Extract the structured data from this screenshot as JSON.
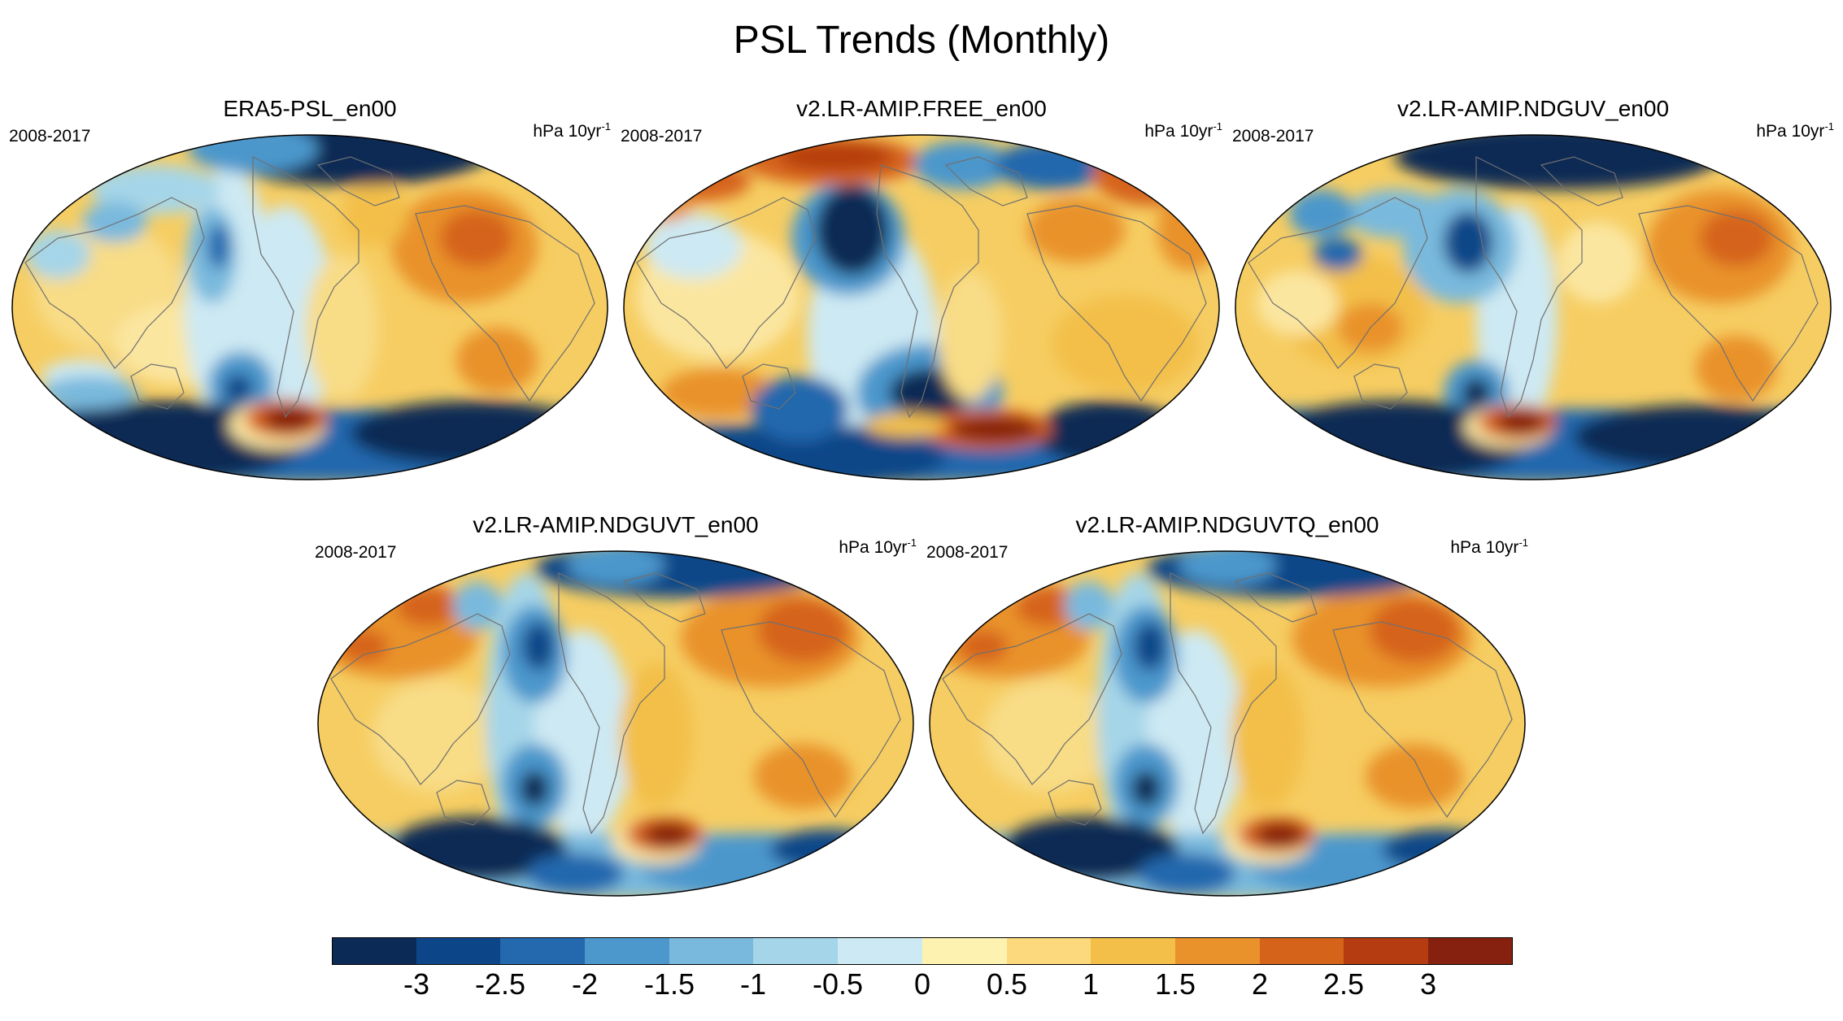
{
  "figure": {
    "title": "PSL Trends (Monthly)"
  },
  "panels": [
    {
      "title": "ERA5-PSL_en00",
      "period": "2008-2017",
      "units": "hPa 10yr",
      "units_exp": "-1"
    },
    {
      "title": "v2.LR-AMIP.FREE_en00",
      "period": "2008-2017",
      "units": "hPa 10yr",
      "units_exp": "-1"
    },
    {
      "title": "v2.LR-AMIP.NDGUV_en00",
      "period": "2008-2017",
      "units": "hPa 10yr",
      "units_exp": "-1"
    },
    {
      "title": "v2.LR-AMIP.NDGUVT_en00",
      "period": "2008-2017",
      "units": "hPa 10yr",
      "units_exp": "-1"
    },
    {
      "title": "v2.LR-AMIP.NDGUVTQ_en00",
      "period": "2008-2017",
      "units": "hPa 10yr",
      "units_exp": "-1"
    }
  ],
  "colorbar": {
    "labels": [
      "-3",
      "-2.5",
      "-2",
      "-1.5",
      "-1",
      "-0.5",
      "0",
      "0.5",
      "1",
      "1.5",
      "2",
      "2.5",
      "3"
    ],
    "colors": [
      "#0b2a55",
      "#0d4688",
      "#2468ad",
      "#4c97cc",
      "#79b9dd",
      "#a5d5e8",
      "#cde9f3",
      "#fdf2b0",
      "#fbd97c",
      "#f3bf49",
      "#e9922b",
      "#d6631a",
      "#b53c10",
      "#86210f"
    ]
  },
  "colors": {
    "coastline": "#707070",
    "map_border": "#000000"
  }
}
